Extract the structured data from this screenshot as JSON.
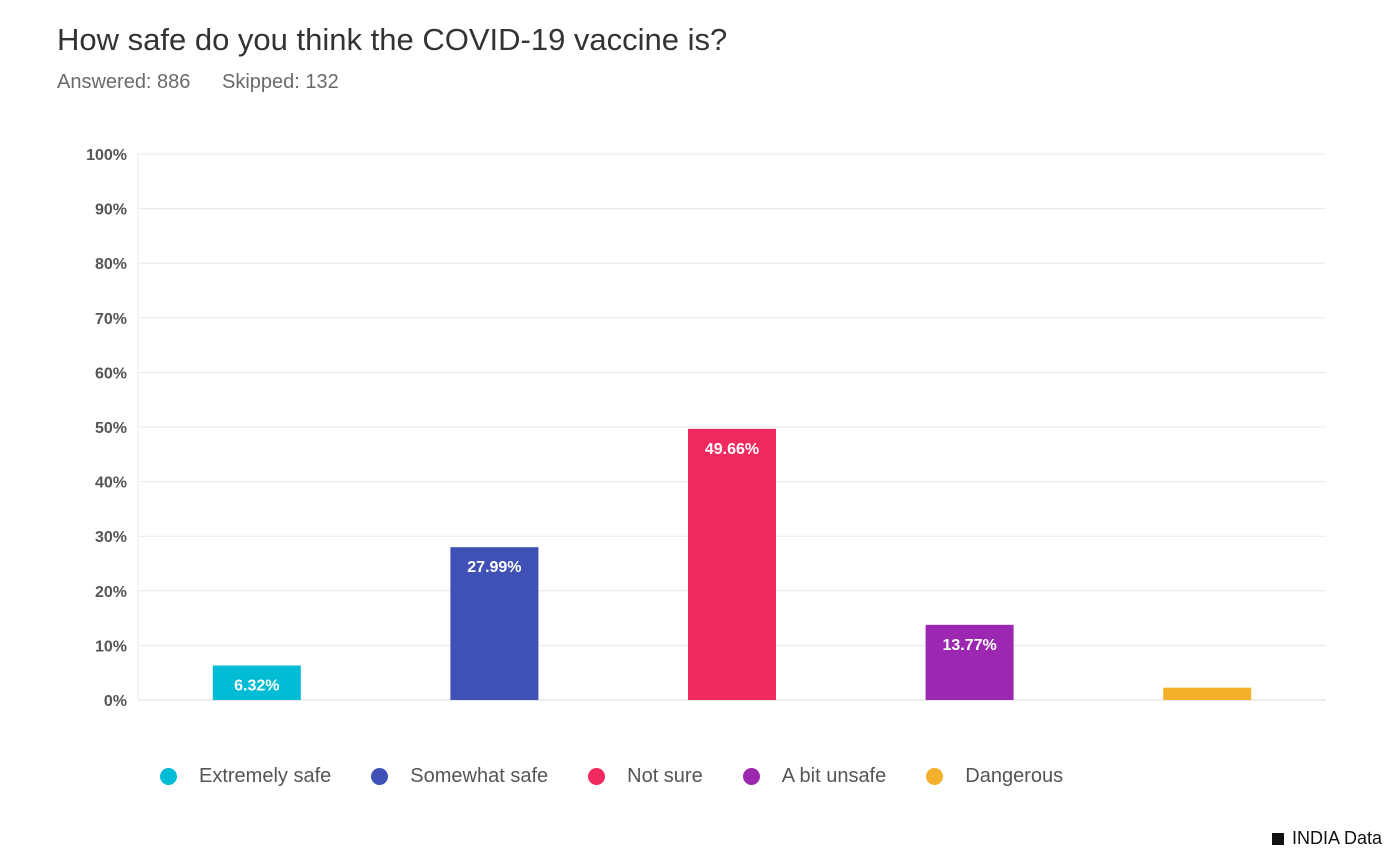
{
  "header": {
    "title": "How safe do you think the COVID-19 vaccine is?",
    "answered": "Answered: 886",
    "skipped": "Skipped: 132"
  },
  "chart_data": {
    "type": "bar",
    "categories": [
      "Extremely safe",
      "Somewhat safe",
      "Not sure",
      "A bit unsafe",
      "Dangerous"
    ],
    "values": [
      6.32,
      27.99,
      49.66,
      13.77,
      2.26
    ],
    "data_labels": [
      "6.32%",
      "27.99%",
      "49.66%",
      "13.77%",
      ""
    ],
    "colors": [
      "#00BCD4",
      "#3F51B5",
      "#F0295F",
      "#9C27B0",
      "#F4B02B"
    ],
    "ylim": [
      0,
      100
    ],
    "yticks": [
      0,
      10,
      20,
      30,
      40,
      50,
      60,
      70,
      80,
      90,
      100
    ],
    "ytick_labels": [
      "0%",
      "10%",
      "20%",
      "30%",
      "40%",
      "50%",
      "60%",
      "70%",
      "80%",
      "90%",
      "100%"
    ],
    "grid": true,
    "legend": "bottom",
    "title": "How safe do you think the COVID-19 vaccine is?"
  },
  "footer": {
    "source": "INDIA Data"
  }
}
